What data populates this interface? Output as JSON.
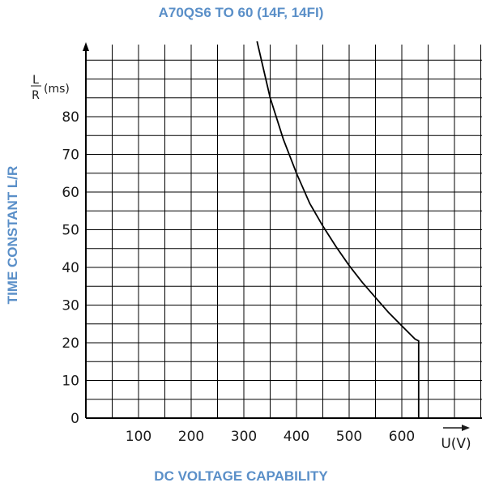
{
  "chart_data": {
    "type": "line",
    "title": "A70QS6 TO 60 (14F, 14FI)",
    "xlabel": "DC VOLTAGE CAPABILITY",
    "ylabel": "TIME CONSTANT L/R",
    "x_axis_unit": "U(V)",
    "y_axis_unit": {
      "numerator": "L",
      "denominator": "R",
      "suffix": "(ms)"
    },
    "x_ticks": [
      "100",
      "200",
      "300",
      "400",
      "500",
      "600"
    ],
    "y_ticks": [
      "0",
      "10",
      "20",
      "30",
      "40",
      "50",
      "60",
      "70",
      "80"
    ],
    "xlim": [
      0,
      750
    ],
    "ylim": [
      0,
      100
    ],
    "grid": true,
    "series": [
      {
        "x": [
          325,
          350,
          375,
          400,
          425,
          450,
          475,
          500,
          525,
          550,
          575,
          600,
          625,
          632,
          632
        ],
        "y": [
          100,
          85,
          74,
          65,
          57,
          51,
          45.5,
          40.5,
          36,
          32,
          28,
          24.5,
          21,
          20.5,
          0
        ]
      }
    ]
  }
}
